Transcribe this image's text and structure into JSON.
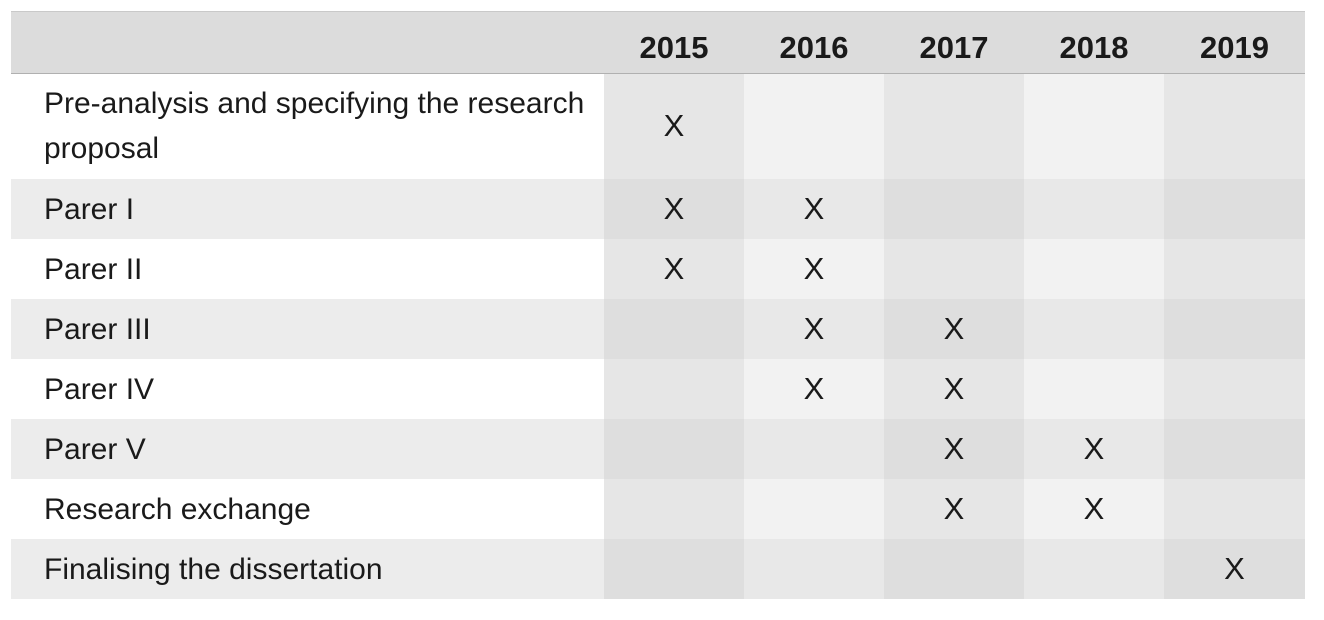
{
  "table": {
    "header": {
      "activity": "",
      "years": [
        "2015",
        "2016",
        "2017",
        "2018",
        "2019"
      ]
    },
    "rows": [
      {
        "activity": "Pre-analysis and specifying the research proposal",
        "marks": [
          "X",
          "",
          "",
          "",
          ""
        ]
      },
      {
        "activity": "Parer I",
        "marks": [
          "X",
          "X",
          "",
          "",
          ""
        ]
      },
      {
        "activity": "Parer II",
        "marks": [
          "X",
          "X",
          "",
          "",
          ""
        ]
      },
      {
        "activity": "Parer III",
        "marks": [
          "",
          "X",
          "X",
          "",
          ""
        ]
      },
      {
        "activity": "Parer IV",
        "marks": [
          "",
          "X",
          "X",
          "",
          ""
        ]
      },
      {
        "activity": "Parer V",
        "marks": [
          "",
          "",
          "X",
          "X",
          ""
        ]
      },
      {
        "activity": "Research exchange",
        "marks": [
          "",
          "",
          "X",
          "X",
          ""
        ]
      },
      {
        "activity": "Finalising the dissertation",
        "marks": [
          "",
          "",
          "",
          "",
          "X"
        ]
      }
    ]
  }
}
